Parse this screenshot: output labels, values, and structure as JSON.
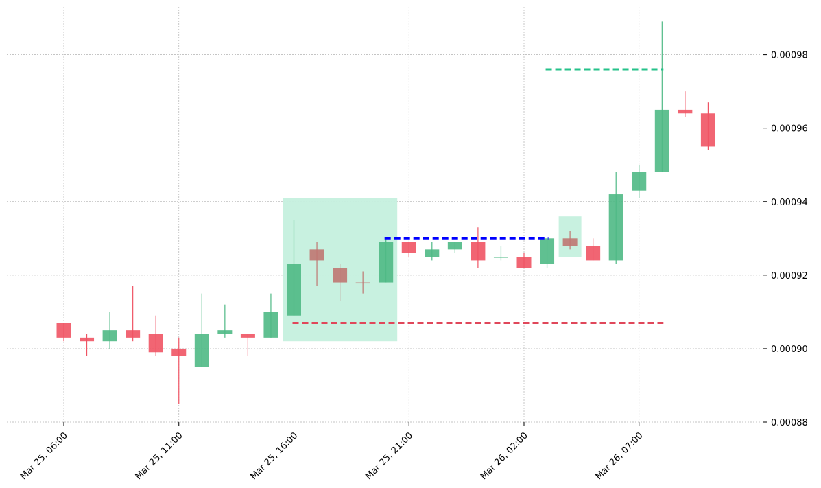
{
  "chart_data": {
    "type": "candlestick",
    "title": "",
    "xlabel": "",
    "ylabel": "",
    "ylim": [
      0.00088,
      0.000993
    ],
    "grid": true,
    "y_ticks": [
      {
        "value": 0.00088,
        "label": "0.00088"
      },
      {
        "value": 0.0009,
        "label": "0.00090"
      },
      {
        "value": 0.00092,
        "label": "0.00092"
      },
      {
        "value": 0.00094,
        "label": "0.00094"
      },
      {
        "value": 0.00096,
        "label": "0.00096"
      },
      {
        "value": 0.00098,
        "label": "0.00098"
      }
    ],
    "x_ticks": [
      {
        "index": 0,
        "label": "Mar 25, 06:00"
      },
      {
        "index": 5,
        "label": "Mar 25, 11:00"
      },
      {
        "index": 10,
        "label": "Mar 25, 16:00"
      },
      {
        "index": 15,
        "label": "Mar 25, 21:00"
      },
      {
        "index": 20,
        "label": "Mar 26, 02:00"
      },
      {
        "index": 25,
        "label": "Mar 26, 07:00"
      },
      {
        "index": 30,
        "label": ""
      }
    ],
    "candles": [
      {
        "t": "Mar 25, 06:00",
        "open": 0.000907,
        "high": 0.000907,
        "low": 0.000902,
        "close": 0.000903
      },
      {
        "t": "Mar 25, 07:00",
        "open": 0.000903,
        "high": 0.000904,
        "low": 0.000898,
        "close": 0.000902
      },
      {
        "t": "Mar 25, 08:00",
        "open": 0.000902,
        "high": 0.00091,
        "low": 0.0009,
        "close": 0.000905
      },
      {
        "t": "Mar 25, 09:00",
        "open": 0.000905,
        "high": 0.000917,
        "low": 0.000902,
        "close": 0.000903
      },
      {
        "t": "Mar 25, 10:00",
        "open": 0.000904,
        "high": 0.000909,
        "low": 0.000898,
        "close": 0.000899
      },
      {
        "t": "Mar 25, 11:00",
        "open": 0.0009,
        "high": 0.000903,
        "low": 0.000885,
        "close": 0.000898
      },
      {
        "t": "Mar 25, 12:00",
        "open": 0.000895,
        "high": 0.000915,
        "low": 0.000895,
        "close": 0.000904
      },
      {
        "t": "Mar 25, 13:00",
        "open": 0.000904,
        "high": 0.000912,
        "low": 0.000903,
        "close": 0.000905
      },
      {
        "t": "Mar 25, 14:00",
        "open": 0.000904,
        "high": 0.000904,
        "low": 0.000898,
        "close": 0.000903
      },
      {
        "t": "Mar 25, 15:00",
        "open": 0.000903,
        "high": 0.000915,
        "low": 0.000903,
        "close": 0.00091
      },
      {
        "t": "Mar 25, 16:00",
        "open": 0.000909,
        "high": 0.000935,
        "low": 0.000909,
        "close": 0.000923
      },
      {
        "t": "Mar 25, 17:00",
        "open": 0.000927,
        "high": 0.000929,
        "low": 0.000917,
        "close": 0.000924
      },
      {
        "t": "Mar 25, 18:00",
        "open": 0.000922,
        "high": 0.000923,
        "low": 0.000913,
        "close": 0.000918
      },
      {
        "t": "Mar 25, 19:00",
        "open": 0.000918,
        "high": 0.000921,
        "low": 0.000915,
        "close": 0.000918
      },
      {
        "t": "Mar 25, 20:00",
        "open": 0.000918,
        "high": 0.00093,
        "low": 0.000918,
        "close": 0.000929
      },
      {
        "t": "Mar 25, 21:00",
        "open": 0.000929,
        "high": 0.000929,
        "low": 0.000925,
        "close": 0.000926
      },
      {
        "t": "Mar 25, 22:00",
        "open": 0.000925,
        "high": 0.000929,
        "low": 0.000924,
        "close": 0.000927
      },
      {
        "t": "Mar 25, 23:00",
        "open": 0.000927,
        "high": 0.000929,
        "low": 0.000926,
        "close": 0.000929
      },
      {
        "t": "Mar 26, 00:00",
        "open": 0.000929,
        "high": 0.000933,
        "low": 0.000922,
        "close": 0.000924
      },
      {
        "t": "Mar 26, 01:00",
        "open": 0.000925,
        "high": 0.000928,
        "low": 0.000924,
        "close": 0.000925
      },
      {
        "t": "Mar 26, 02:00",
        "open": 0.000925,
        "high": 0.000926,
        "low": 0.000922,
        "close": 0.000922
      },
      {
        "t": "Mar 26, 03:00",
        "open": 0.000923,
        "high": 0.00093,
        "low": 0.000922,
        "close": 0.00093
      },
      {
        "t": "Mar 26, 04:00",
        "open": 0.00093,
        "high": 0.000932,
        "low": 0.000927,
        "close": 0.000928
      },
      {
        "t": "Mar 26, 05:00",
        "open": 0.000928,
        "high": 0.00093,
        "low": 0.000924,
        "close": 0.000924
      },
      {
        "t": "Mar 26, 06:00",
        "open": 0.000924,
        "high": 0.000948,
        "low": 0.000923,
        "close": 0.000942
      },
      {
        "t": "Mar 26, 07:00",
        "open": 0.000943,
        "high": 0.00095,
        "low": 0.000941,
        "close": 0.000948
      },
      {
        "t": "Mar 26, 08:00",
        "open": 0.000948,
        "high": 0.000989,
        "low": 0.000948,
        "close": 0.000965
      },
      {
        "t": "Mar 26, 09:00",
        "open": 0.000965,
        "high": 0.00097,
        "low": 0.000963,
        "close": 0.000964
      },
      {
        "t": "Mar 26, 10:00",
        "open": 0.000964,
        "high": 0.000967,
        "low": 0.000954,
        "close": 0.000955
      }
    ],
    "highlight_zones": [
      {
        "from_index": 10,
        "to_index": 14,
        "low": 0.000902,
        "high": 0.000941
      },
      {
        "from_index": 22,
        "to_index": 22,
        "low": 0.000925,
        "high": 0.000936
      }
    ],
    "muted_candle_indices": [
      11,
      12,
      13,
      22
    ],
    "levels": [
      {
        "name": "red-support-line",
        "value": 0.000907,
        "from_index": 10,
        "to_index": 26,
        "color": "#e0475a"
      },
      {
        "name": "blue-resistance-line",
        "value": 0.00093,
        "from_index": 14,
        "to_index": 21,
        "color": "#0000ff"
      },
      {
        "name": "green-target-line",
        "value": 0.000976,
        "from_index": 21,
        "to_index": 26,
        "color": "#25c28a"
      }
    ],
    "colors": {
      "up": "#4fb985",
      "down": "#ef5464",
      "muted": "#bf7772",
      "zone": "#c5f0de",
      "grid": "#b0b0b0"
    }
  }
}
